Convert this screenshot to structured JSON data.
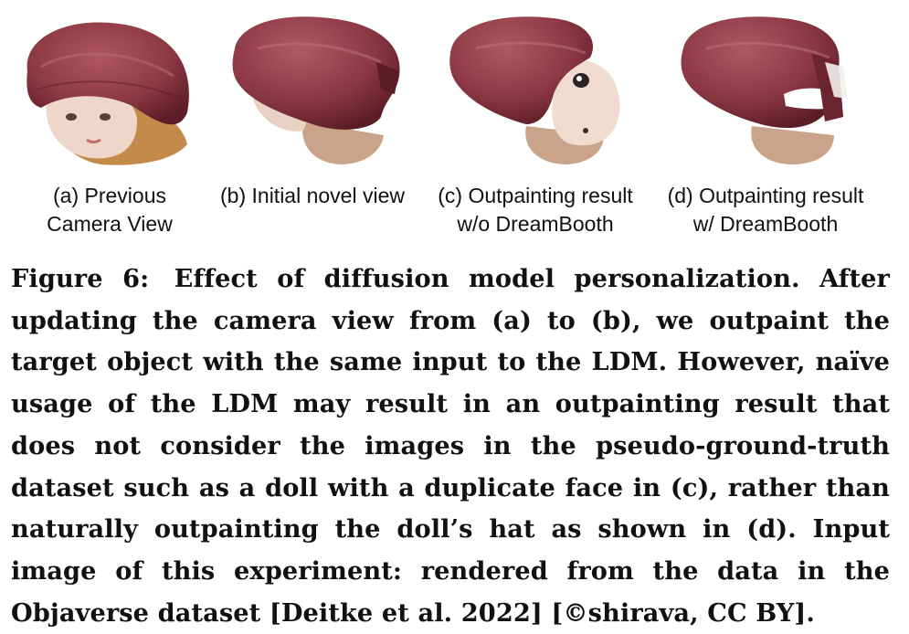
{
  "figure": {
    "panels": [
      {
        "id": "a",
        "caption_line1": "(a) Previous",
        "caption_line2": "Camera View"
      },
      {
        "id": "b",
        "caption_line1": "(b) Initial novel view",
        "caption_line2": ""
      },
      {
        "id": "c",
        "caption_line1": "(c) Outpainting result",
        "caption_line2": "w/o DreamBooth"
      },
      {
        "id": "d",
        "caption_line1": "(d) Outpainting result",
        "caption_line2": "w/ DreamBooth"
      }
    ],
    "caption": {
      "label": "Figure 6:",
      "text": "Effect of diffusion model personalization. After updating the camera view from (a) to (b), we outpaint the target object with the same input to the LDM. However, naïve usage of the LDM may result in an outpainting result that does not consider the images in the pseudo-ground-truth dataset such as a doll with a duplicate face in (c), rather than naturally outpainting the doll’s hat as shown in (d). Input image of this experiment: rendered from the data in the Objaverse dataset [Deitke et al. 2022] [©shirava, CC BY]."
    }
  },
  "colors": {
    "hat": "#8e3a43",
    "hat_dark": "#6b2530",
    "skin": "#e9cfc0",
    "hair": "#c48a4a",
    "text": "#111111"
  }
}
